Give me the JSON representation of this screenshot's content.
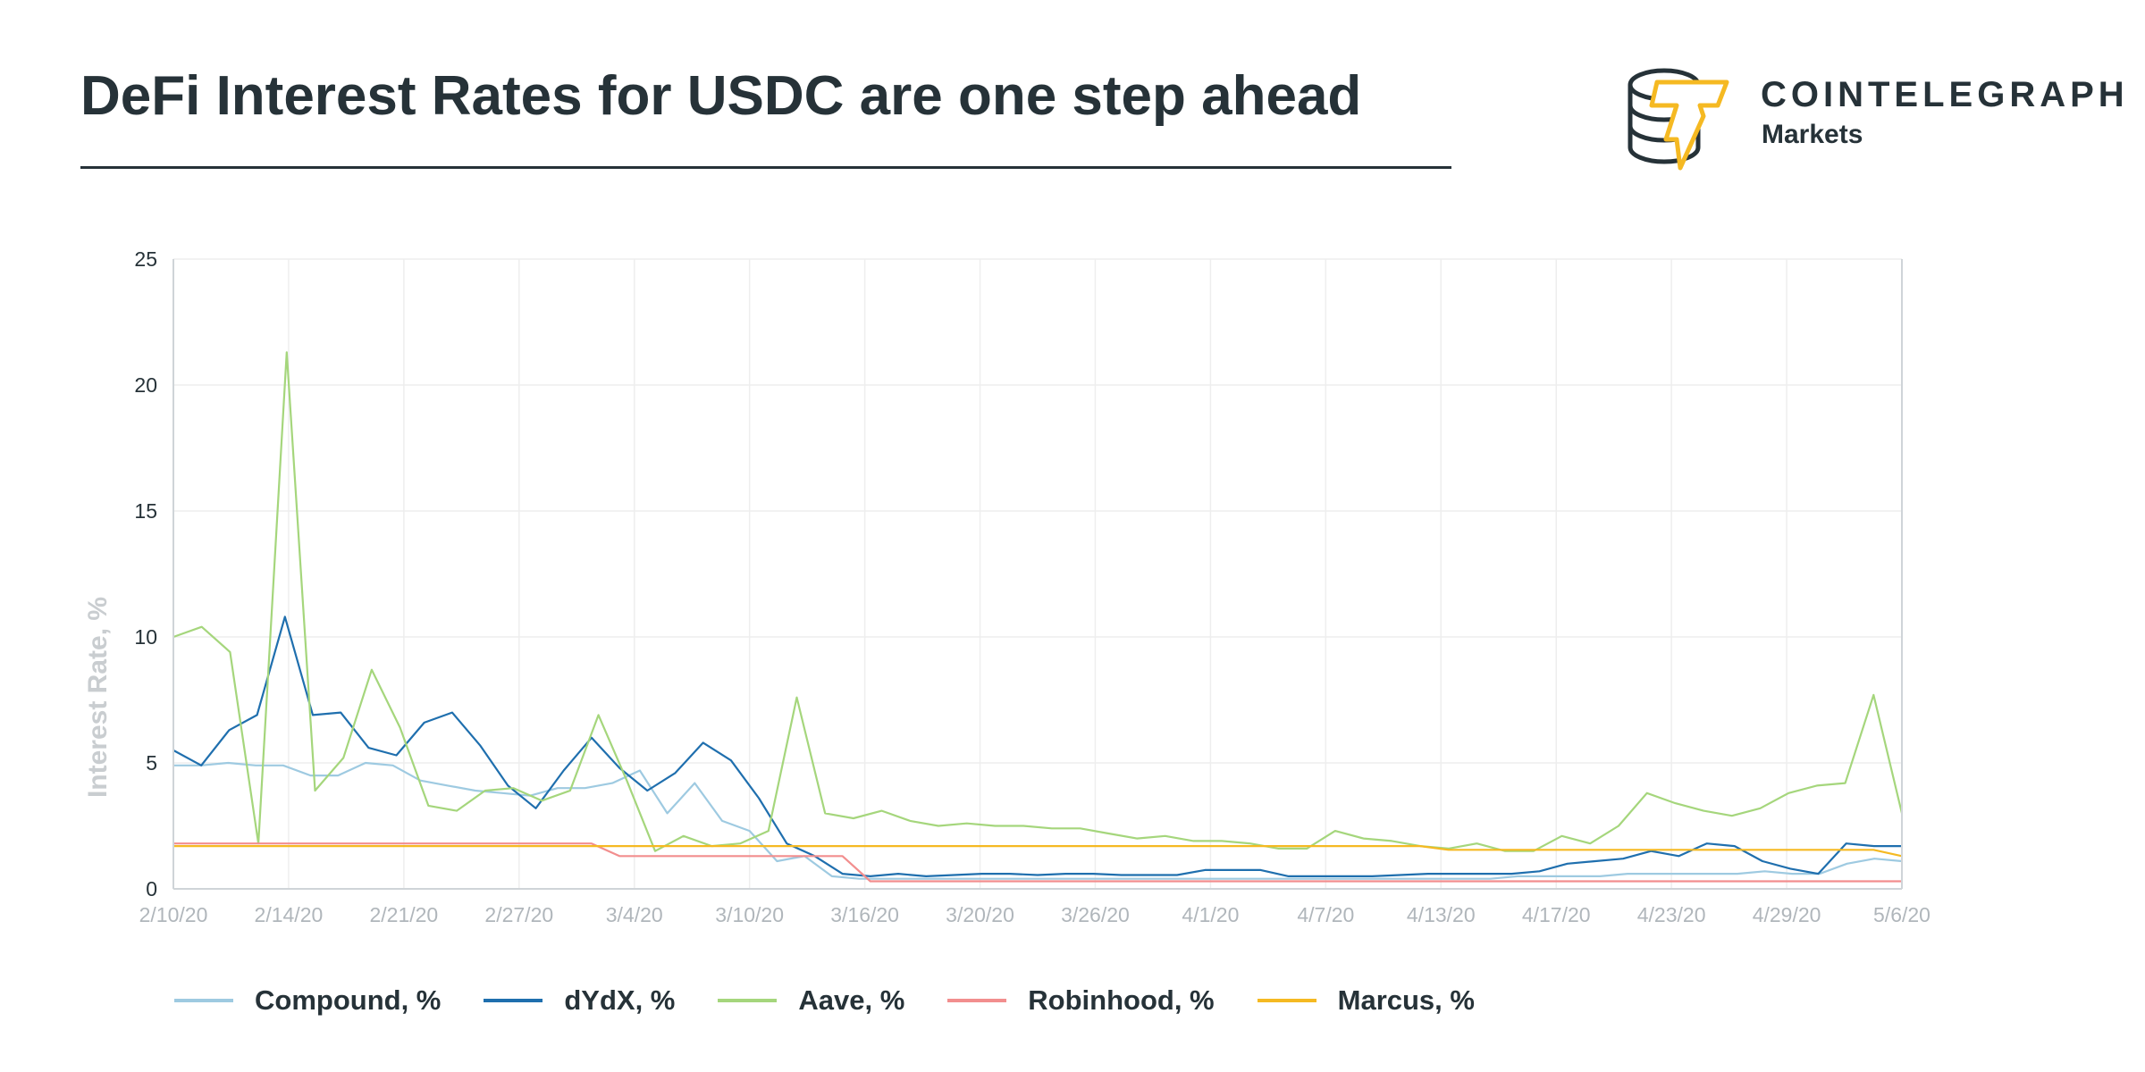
{
  "header": {
    "title": "DeFi Interest Rates for USDC are one step ahead",
    "brand": "COINTELEGRAPH",
    "brand_sub": "Markets",
    "brand_color": "#F5B922",
    "ink_color": "#263238"
  },
  "chart_data": {
    "type": "line",
    "title": "DeFi Interest Rates for USDC are one step ahead",
    "xlabel": "",
    "ylabel": "Interest Rate, %",
    "ylim": [
      0,
      25
    ],
    "yticks": [
      0,
      5,
      10,
      15,
      20,
      25
    ],
    "x_tick_labels": [
      "2/10/20",
      "2/14/20",
      "2/21/20",
      "2/27/20",
      "3/4/20",
      "3/10/20",
      "3/16/20",
      "3/20/20",
      "3/26/20",
      "4/1/20",
      "4/7/20",
      "4/13/20",
      "4/17/20",
      "4/23/20",
      "4/29/20",
      "5/6/20"
    ],
    "grid": true,
    "legend_position": "bottom",
    "series": [
      {
        "name": "Compound, %",
        "color": "#9ECAE1",
        "values": [
          4.9,
          4.9,
          5.0,
          4.9,
          4.9,
          4.5,
          4.5,
          5.0,
          4.9,
          4.3,
          4.1,
          3.9,
          3.8,
          3.7,
          4.0,
          4.0,
          4.2,
          4.7,
          3.0,
          4.2,
          2.7,
          2.3,
          1.1,
          1.3,
          0.5,
          0.4,
          0.4,
          0.4,
          0.4,
          0.4,
          0.4,
          0.4,
          0.4,
          0.4,
          0.4,
          0.4,
          0.4,
          0.4,
          0.4,
          0.4,
          0.4,
          0.4,
          0.4,
          0.4,
          0.4,
          0.4,
          0.4,
          0.4,
          0.4,
          0.5,
          0.5,
          0.5,
          0.5,
          0.6,
          0.6,
          0.6,
          0.6,
          0.6,
          0.7,
          0.6,
          0.6,
          1.0,
          1.2,
          1.1
        ]
      },
      {
        "name": "dYdX, %",
        "color": "#1F6FAE",
        "values": [
          5.5,
          4.9,
          6.3,
          6.9,
          10.8,
          6.9,
          7.0,
          5.6,
          5.3,
          6.6,
          7.0,
          5.7,
          4.1,
          3.2,
          4.7,
          6.0,
          4.8,
          3.9,
          4.6,
          5.8,
          5.1,
          3.6,
          1.8,
          1.3,
          0.6,
          0.5,
          0.6,
          0.5,
          0.55,
          0.6,
          0.6,
          0.55,
          0.6,
          0.6,
          0.55,
          0.55,
          0.55,
          0.75,
          0.75,
          0.75,
          0.5,
          0.5,
          0.5,
          0.5,
          0.55,
          0.6,
          0.6,
          0.6,
          0.6,
          0.7,
          1.0,
          1.1,
          1.2,
          1.5,
          1.3,
          1.8,
          1.7,
          1.1,
          0.8,
          0.6,
          1.8,
          1.7,
          1.7
        ]
      },
      {
        "name": "Aave, %",
        "color": "#A5D67C",
        "values": [
          10.0,
          10.4,
          9.4,
          1.8,
          21.3,
          3.9,
          5.2,
          8.7,
          6.4,
          3.3,
          3.1,
          3.9,
          4.0,
          3.5,
          3.9,
          6.9,
          4.3,
          1.5,
          2.1,
          1.7,
          1.8,
          2.3,
          7.6,
          3.0,
          2.8,
          3.1,
          2.7,
          2.5,
          2.6,
          2.5,
          2.5,
          2.4,
          2.4,
          2.2,
          2.0,
          2.1,
          1.9,
          1.9,
          1.8,
          1.6,
          1.6,
          2.3,
          2.0,
          1.9,
          1.7,
          1.6,
          1.8,
          1.5,
          1.5,
          2.1,
          1.8,
          2.5,
          3.8,
          3.4,
          3.1,
          2.9,
          3.2,
          3.8,
          4.1,
          4.2,
          7.7,
          3.0
        ]
      },
      {
        "name": "Robinhood, %",
        "color": "#F28E8E",
        "values": [
          1.8,
          1.8,
          1.8,
          1.8,
          1.8,
          1.8,
          1.8,
          1.8,
          1.8,
          1.8,
          1.8,
          1.8,
          1.8,
          1.8,
          1.8,
          1.8,
          1.3,
          1.3,
          1.3,
          1.3,
          1.3,
          1.3,
          1.3,
          1.3,
          1.3,
          0.3,
          0.3,
          0.3,
          0.3,
          0.3,
          0.3,
          0.3,
          0.3,
          0.3,
          0.3,
          0.3,
          0.3,
          0.3,
          0.3,
          0.3,
          0.3,
          0.3,
          0.3,
          0.3,
          0.3,
          0.3,
          0.3,
          0.3,
          0.3,
          0.3,
          0.3,
          0.3,
          0.3,
          0.3,
          0.3,
          0.3,
          0.3,
          0.3,
          0.3,
          0.3,
          0.3,
          0.3,
          0.3
        ]
      },
      {
        "name": "Marcus, %",
        "color": "#F5B922",
        "values": [
          1.7,
          1.7,
          1.7,
          1.7,
          1.7,
          1.7,
          1.7,
          1.7,
          1.7,
          1.7,
          1.7,
          1.7,
          1.7,
          1.7,
          1.7,
          1.7,
          1.7,
          1.7,
          1.7,
          1.7,
          1.7,
          1.7,
          1.7,
          1.7,
          1.7,
          1.7,
          1.7,
          1.7,
          1.7,
          1.7,
          1.7,
          1.7,
          1.7,
          1.7,
          1.7,
          1.7,
          1.7,
          1.7,
          1.7,
          1.7,
          1.7,
          1.7,
          1.7,
          1.7,
          1.7,
          1.55,
          1.55,
          1.55,
          1.55,
          1.55,
          1.55,
          1.55,
          1.55,
          1.55,
          1.55,
          1.55,
          1.55,
          1.55,
          1.55,
          1.55,
          1.55,
          1.3
        ]
      }
    ]
  }
}
